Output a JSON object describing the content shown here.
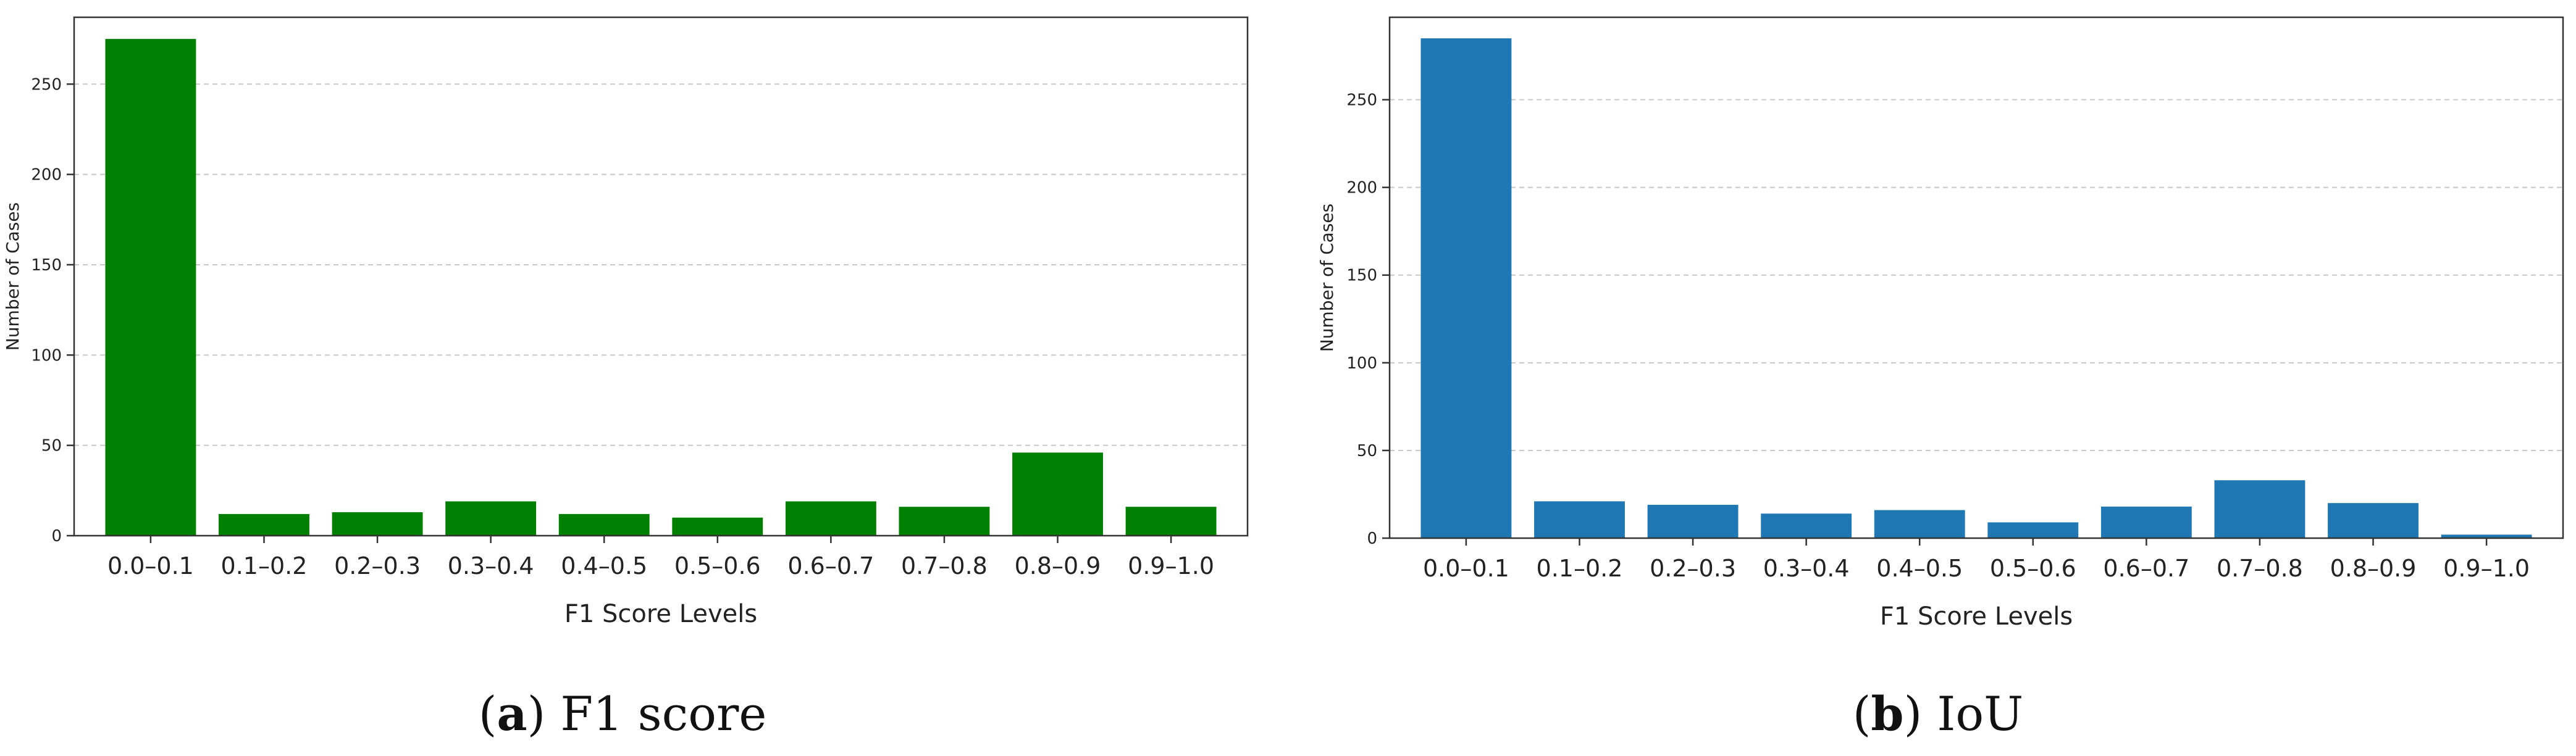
{
  "panels": [
    {
      "caption_letter": "a",
      "caption_paren_open": "(",
      "caption_paren_close": ")",
      "caption_text": "F1 score",
      "bar_color": "#008000"
    },
    {
      "caption_letter": "b",
      "caption_paren_open": "(",
      "caption_paren_close": ")",
      "caption_text": "IoU",
      "bar_color": "#1f77b4"
    }
  ],
  "chart_data": [
    {
      "type": "bar",
      "categories": [
        "0.0–0.1",
        "0.1–0.2",
        "0.2–0.3",
        "0.3–0.4",
        "0.4–0.5",
        "0.5–0.6",
        "0.6–0.7",
        "0.7–0.8",
        "0.8–0.9",
        "0.9–1.0"
      ],
      "values": [
        275,
        12,
        13,
        19,
        12,
        10,
        19,
        16,
        46,
        16
      ],
      "xlabel": "F1 Score Levels",
      "ylabel": "Number of Cases",
      "ylim": [
        0,
        287
      ],
      "yticks": [
        0,
        50,
        100,
        150,
        200,
        250
      ],
      "grid": "horizontal dashed"
    },
    {
      "type": "bar",
      "categories": [
        "0.0–0.1",
        "0.1–0.2",
        "0.2–0.3",
        "0.3–0.4",
        "0.4–0.5",
        "0.5–0.6",
        "0.6–0.7",
        "0.7–0.8",
        "0.8–0.9",
        "0.9–1.0"
      ],
      "values": [
        285,
        21,
        19,
        14,
        16,
        9,
        18,
        33,
        20,
        2
      ],
      "xlabel": "F1 Score Levels",
      "ylabel": "Number of Cases",
      "ylim": [
        0,
        297
      ],
      "yticks": [
        0,
        50,
        100,
        150,
        200,
        250
      ],
      "grid": "horizontal dashed"
    }
  ]
}
